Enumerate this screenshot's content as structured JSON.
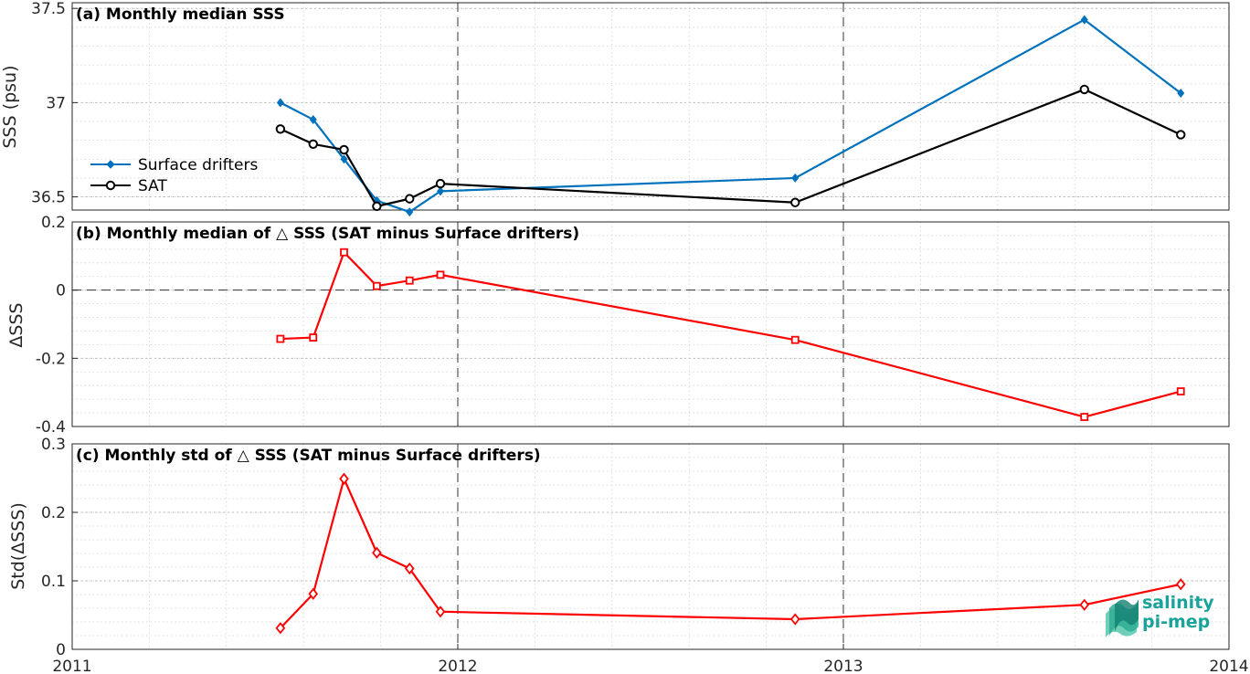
{
  "panels": [
    {
      "title": "(a) Monthly median SSS",
      "ylabel": "SSS (psu)",
      "yticks": [
        "36.5",
        "37",
        "37.5"
      ]
    },
    {
      "title": "(b) Monthly median of △ SSS (SAT minus Surface drifters)",
      "ylabel": "ΔSSS",
      "yticks": [
        "-0.4",
        "-0.2",
        "0",
        "0.2"
      ]
    },
    {
      "title": "(c) Monthly std of △ SSS (SAT minus Surface drifters)",
      "ylabel": "Std(ΔSSS)",
      "yticks": [
        "0",
        "0.1",
        "0.2",
        "0.3"
      ]
    }
  ],
  "xticks": [
    "2011",
    "2012",
    "2013",
    "2014"
  ],
  "legend": [
    "Surface drifters",
    "SAT"
  ],
  "logo": {
    "line1": "salinity",
    "line2": "pi-mep"
  },
  "colors": {
    "drifters": "#0072bd",
    "sat": "#000000",
    "delta": "#ff0000",
    "grid": "#d0d0d0"
  },
  "chart_data": [
    {
      "type": "line",
      "title": "(a) Monthly median SSS",
      "xlabel": "",
      "ylabel": "SSS (psu)",
      "xlim": [
        2011.0,
        2014.0
      ],
      "ylim": [
        36.43,
        37.53
      ],
      "x": [
        2011.54,
        2011.625,
        2011.705,
        2011.79,
        2011.875,
        2011.955,
        2012.875,
        2013.625,
        2013.875
      ],
      "series": [
        {
          "name": "Surface drifters",
          "marker": "diamond",
          "values": [
            37.0,
            36.91,
            36.7,
            36.48,
            36.42,
            36.53,
            36.6,
            37.44,
            37.05
          ]
        },
        {
          "name": "SAT",
          "marker": "circle",
          "values": [
            36.86,
            36.78,
            36.75,
            36.45,
            36.49,
            36.57,
            36.47,
            37.07,
            36.83
          ]
        }
      ],
      "grid": true,
      "legend_position": "left"
    },
    {
      "type": "line",
      "title": "(b) Monthly median of △ SSS (SAT minus Surface drifters)",
      "xlabel": "",
      "ylabel": "ΔSSS",
      "xlim": [
        2011.0,
        2014.0
      ],
      "ylim": [
        -0.4,
        0.2
      ],
      "x": [
        2011.54,
        2011.625,
        2011.705,
        2011.79,
        2011.875,
        2011.955,
        2012.875,
        2013.625,
        2013.875
      ],
      "series": [
        {
          "marker": "square",
          "values": [
            -0.143,
            -0.139,
            0.111,
            0.012,
            0.028,
            0.045,
            -0.146,
            -0.372,
            -0.297
          ]
        }
      ],
      "grid": true
    },
    {
      "type": "line",
      "title": "(c) Monthly std of △ SSS (SAT minus Surface drifters)",
      "xlabel": "",
      "ylabel": "Std(ΔSSS)",
      "xlim": [
        2011.0,
        2014.0
      ],
      "ylim": [
        0,
        0.3
      ],
      "x": [
        2011.54,
        2011.625,
        2011.705,
        2011.79,
        2011.875,
        2011.955,
        2012.875,
        2013.625,
        2013.875
      ],
      "series": [
        {
          "marker": "diamond",
          "values": [
            0.031,
            0.081,
            0.249,
            0.141,
            0.118,
            0.055,
            0.044,
            0.065,
            0.095
          ]
        }
      ],
      "grid": true
    }
  ]
}
